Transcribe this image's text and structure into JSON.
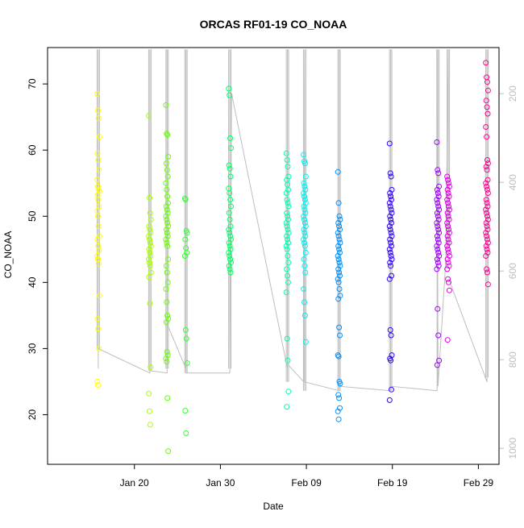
{
  "chart_data": {
    "type": "scatter",
    "title": "ORCAS RF01-19 CO_NOAA",
    "xlabel": "Date",
    "ylabel": "CO_NOAA",
    "x_ticks": [
      "Jan 20",
      "Jan 30",
      "Feb 09",
      "Feb 19",
      "Feb 29"
    ],
    "x_tick_days": [
      20,
      30,
      40,
      50,
      60
    ],
    "xlim": [
      9.9,
      62.4
    ],
    "ylim": [
      12.5,
      75.5
    ],
    "y_ticks": [
      20,
      30,
      40,
      50,
      60,
      70
    ],
    "y2_ticks": [
      200,
      400,
      600,
      800,
      1000
    ],
    "y2lim": [
      1036,
      96
    ],
    "y2_color": "#bebebe",
    "secondary_series_color": "#bebebe",
    "grid": false,
    "legend": "none",
    "series": [
      {
        "x": 15.8,
        "color": "#ffff00",
        "values": [
          68.5,
          66,
          64.8,
          62,
          59.5,
          58.5,
          57,
          55.5,
          54.5,
          54,
          53.8,
          53.2,
          52.5,
          51.5,
          50.8,
          50,
          48.5,
          47,
          46.5,
          45.5,
          44.8,
          44,
          43.5,
          42.8,
          38,
          34.5,
          33,
          30,
          25,
          24.5
        ],
        "y2_trace": [
          [
            15.8,
            780
          ],
          [
            15.8,
            820
          ],
          [
            15.8,
            100
          ],
          [
            15.8,
            815
          ],
          [
            15.8,
            775
          ]
        ]
      },
      {
        "x": 21.8,
        "color": "#a8ff00",
        "values": [
          65.2,
          52.8,
          50.5,
          49.5,
          48.5,
          48,
          47.5,
          47,
          46.5,
          46,
          45.5,
          45,
          44.5,
          44,
          43.5,
          43,
          42.5,
          41.5,
          40.8,
          36.8,
          27.2,
          23.2,
          20.5,
          18.5
        ],
        "y2_trace": [
          [
            15.8,
            775
          ],
          [
            21.8,
            830
          ],
          [
            21.8,
            100
          ],
          [
            21.8,
            825
          ]
        ]
      },
      {
        "x": 23.8,
        "color": "#66ff00",
        "values": [
          66.8,
          62.5,
          62.3,
          59,
          58,
          57,
          56,
          55,
          54,
          53,
          52,
          51.5,
          51,
          50.5,
          50,
          49.5,
          49,
          48.5,
          48,
          47.5,
          47,
          46.5,
          46,
          45.5,
          43.5,
          42.5,
          41.5,
          40,
          39,
          37,
          35,
          34.5,
          34,
          29.5,
          29,
          28.5,
          28,
          22.5,
          14.5
        ],
        "y2_trace": [
          [
            21.8,
            825
          ],
          [
            23.8,
            830
          ],
          [
            23.8,
            100
          ],
          [
            23.8,
            720
          ],
          [
            26,
            820
          ]
        ]
      },
      {
        "x": 26.0,
        "color": "#33ff33",
        "values": [
          52.7,
          52.5,
          47.8,
          47.5,
          46.5,
          45.2,
          44.5,
          44,
          32.8,
          31.5,
          27.8,
          20.6,
          17.2
        ],
        "y2_trace": [
          [
            26,
            820
          ],
          [
            26,
            100
          ],
          [
            26,
            830
          ],
          [
            31.1,
            830
          ]
        ]
      },
      {
        "x": 31.1,
        "color": "#00ff66",
        "values": [
          69.3,
          68.3,
          61.8,
          60.3,
          57.7,
          57.2,
          56,
          54.2,
          53.5,
          52.5,
          51.5,
          50.5,
          49.5,
          48.5,
          48,
          47.5,
          47,
          46.5,
          46,
          45.5,
          45,
          44.5,
          44,
          43.5,
          43,
          42.5,
          42,
          41.5
        ],
        "y2_trace": [
          [
            31.1,
            830
          ],
          [
            31.1,
            100
          ],
          [
            31.1,
            800
          ],
          [
            31.3,
            200
          ],
          [
            37.8,
            820
          ]
        ]
      },
      {
        "x": 37.8,
        "color": "#00ffb0",
        "values": [
          59.5,
          58.5,
          57.5,
          56,
          55.5,
          54.8,
          54,
          53.5,
          52.5,
          52,
          51.5,
          50.5,
          50,
          49.5,
          49,
          48.5,
          48,
          47.5,
          47,
          46.5,
          46,
          45.5,
          45,
          44,
          43,
          42,
          41,
          40,
          38.5,
          31.5,
          28.2,
          23.5,
          21.2
        ],
        "y2_trace": [
          [
            37.8,
            820
          ],
          [
            37.8,
            100
          ],
          [
            37.8,
            810
          ],
          [
            39.7,
            850
          ]
        ]
      },
      {
        "x": 39.8,
        "color": "#00f0f0",
        "values": [
          59.3,
          58.3,
          58,
          56,
          55,
          54.5,
          54,
          53.5,
          53,
          52.5,
          52,
          51.5,
          51,
          50.5,
          50,
          49.5,
          49,
          48.5,
          48,
          47.5,
          47,
          46.5,
          46,
          45.5,
          44.5,
          43.5,
          42.5,
          41.5,
          39,
          37,
          35,
          31
        ],
        "y2_trace": [
          [
            39.7,
            850
          ],
          [
            39.8,
            100
          ],
          [
            39.8,
            850
          ],
          [
            43.8,
            870
          ]
        ]
      },
      {
        "x": 43.8,
        "color": "#0090ff",
        "values": [
          56.7,
          52,
          50,
          49.5,
          49,
          48.5,
          48,
          47.5,
          47,
          46.5,
          46,
          45.5,
          45,
          44.5,
          44,
          43.5,
          43,
          42.5,
          42,
          41.5,
          41,
          40.5,
          40,
          39,
          38,
          37.5,
          33.2,
          32,
          29,
          28.8,
          25,
          24.7,
          23,
          22.5,
          21,
          20.5,
          19.3
        ],
        "y2_trace": [
          [
            43.8,
            870
          ],
          [
            43.8,
            100
          ],
          [
            43.8,
            860
          ],
          [
            49.8,
            870
          ]
        ]
      },
      {
        "x": 49.8,
        "color": "#3000ff",
        "values": [
          61,
          56.5,
          56,
          54,
          53.5,
          53,
          52.5,
          52,
          51.5,
          51,
          50.5,
          50,
          49.5,
          49,
          48.5,
          48,
          47.5,
          47,
          46.5,
          46,
          45.5,
          45,
          44.5,
          44,
          43.5,
          43,
          42.5,
          41,
          40.5,
          32.8,
          32,
          29,
          28.5,
          28.2,
          23.8,
          22.2
        ],
        "y2_trace": [
          [
            49.8,
            870
          ],
          [
            49.8,
            100
          ],
          [
            49.8,
            860
          ],
          [
            55.2,
            870
          ]
        ]
      },
      {
        "x": 55.3,
        "color": "#a000ff",
        "values": [
          61.2,
          57,
          56.5,
          54.5,
          54,
          53.5,
          53,
          52.5,
          52,
          51.5,
          51,
          50.5,
          50,
          49.5,
          49,
          48.5,
          48,
          47.5,
          47,
          46.5,
          46,
          45.5,
          45,
          44.5,
          44,
          43.5,
          43,
          42.5,
          42,
          36,
          32,
          28.2,
          27.5
        ],
        "y2_trace": [
          [
            55.2,
            870
          ],
          [
            55.2,
            100
          ],
          [
            55.3,
            860
          ],
          [
            56.2,
            580
          ]
        ]
      },
      {
        "x": 56.5,
        "color": "#e000e0",
        "values": [
          56,
          55.5,
          55,
          54.5,
          54,
          53.5,
          53,
          52.5,
          52,
          51.5,
          51,
          50.5,
          50,
          49.5,
          49,
          48.5,
          48,
          47.5,
          47,
          46.5,
          46,
          45.5,
          45,
          44.5,
          44,
          43.5,
          43,
          42.5,
          42,
          40.5,
          40,
          38.8,
          31.3
        ],
        "y2_trace": [
          [
            56.2,
            580
          ],
          [
            56.5,
            100
          ],
          [
            56.5,
            560
          ]
        ]
      },
      {
        "x": 61.0,
        "color": "#ff0090",
        "values": [
          73.2,
          71,
          70.3,
          69,
          67.5,
          66.5,
          65.5,
          63.5,
          62,
          58.5,
          58,
          57.5,
          57,
          55.5,
          55,
          54.5,
          54,
          53.5,
          52.5,
          52,
          51.5,
          51,
          50.5,
          50,
          49.5,
          49,
          48.5,
          48,
          47.5,
          47,
          46.5,
          46,
          45.5,
          45,
          44.5,
          44,
          42,
          41.5,
          39.7
        ],
        "y2_trace": [
          [
            56.6,
            620
          ],
          [
            61,
            850
          ],
          [
            61,
            100
          ],
          [
            61,
            840
          ]
        ]
      }
    ]
  }
}
